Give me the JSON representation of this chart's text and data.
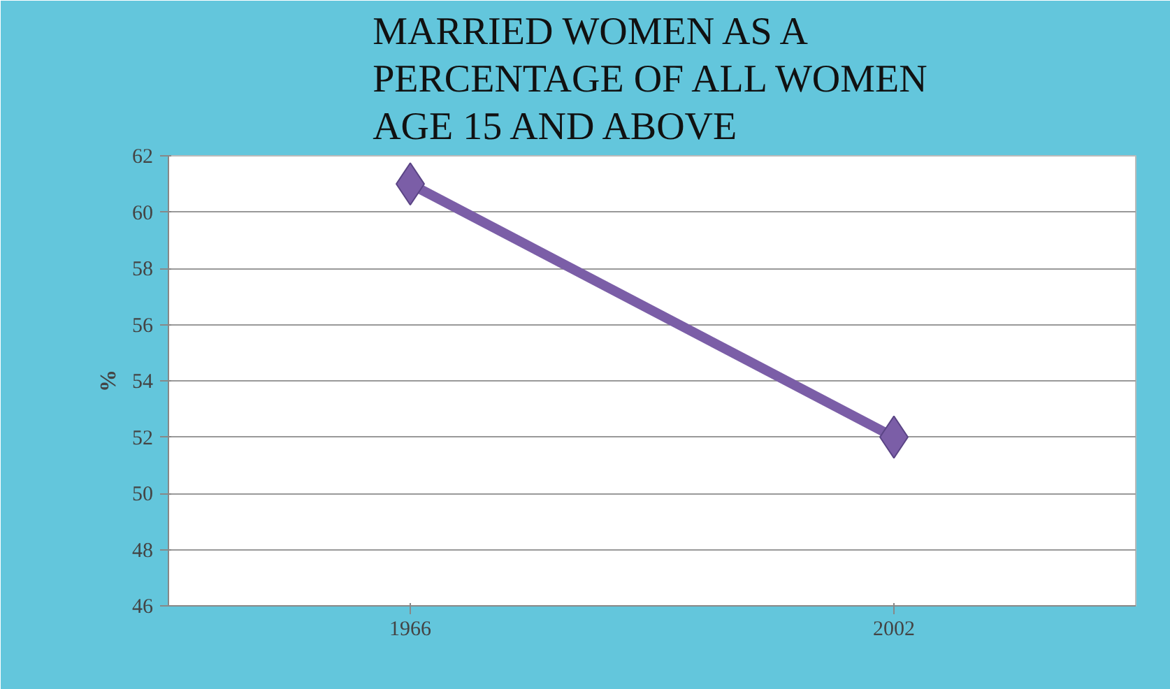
{
  "chart_data": {
    "type": "line",
    "title": "MARRIED WOMEN AS A PERCENTAGE OF ALL WOMEN AGE 15 AND ABOVE",
    "ylabel": "%",
    "categories": [
      "1966",
      "2002"
    ],
    "series": [
      {
        "color": "#7b5ea7",
        "values": [
          61,
          52
        ]
      }
    ],
    "ylim": [
      46,
      62
    ],
    "yticks": [
      46,
      48,
      50,
      52,
      54,
      56,
      58,
      60,
      62
    ],
    "grid": "y",
    "marker": "diamond",
    "line_style": "solid"
  }
}
